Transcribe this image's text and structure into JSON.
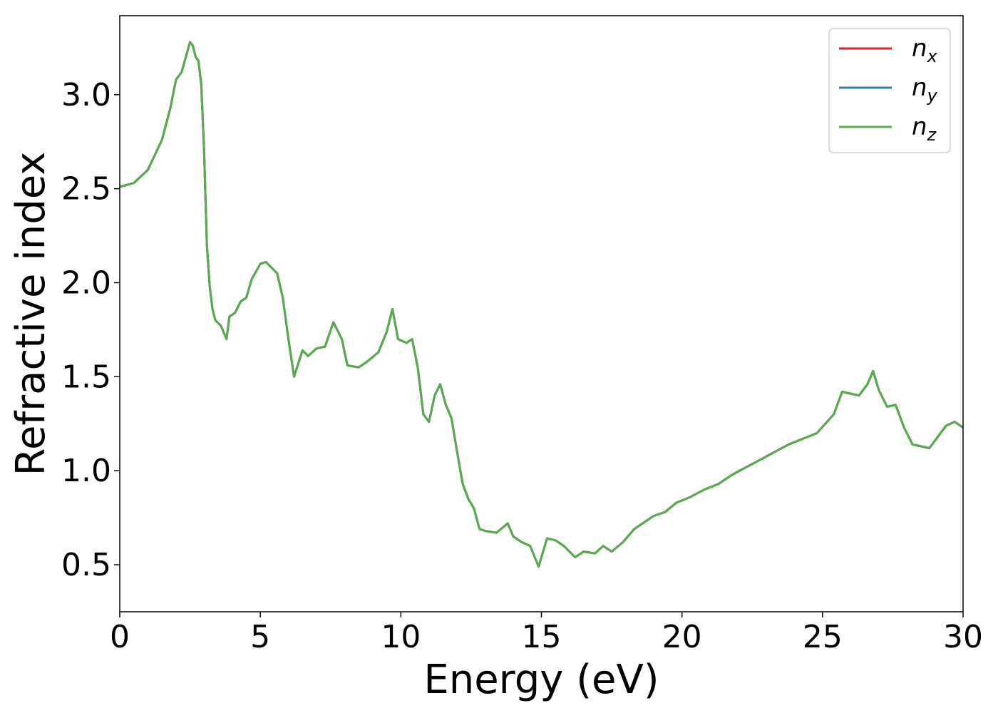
{
  "chart_data": {
    "type": "line",
    "title": "",
    "xlabel": "Energy (eV)",
    "ylabel": "Refractive index",
    "xlim": [
      0,
      30
    ],
    "ylim": [
      0.25,
      3.42
    ],
    "xticks": [
      0,
      5,
      10,
      15,
      20,
      25,
      30
    ],
    "xtick_labels": [
      "0",
      "5",
      "10",
      "15",
      "20",
      "25",
      "30"
    ],
    "yticks": [
      0.5,
      1.0,
      1.5,
      2.0,
      2.5,
      3.0
    ],
    "ytick_labels": [
      "0.5",
      "1.0",
      "1.5",
      "2.0",
      "2.5",
      "3.0"
    ],
    "grid": false,
    "legend_position": "top-right",
    "legend": [
      {
        "base": "n",
        "sub": "x",
        "color": "#d62728"
      },
      {
        "base": "n",
        "sub": "y",
        "color": "#3a7ca8"
      },
      {
        "base": "n",
        "sub": "z",
        "color": "#5aaa50"
      }
    ],
    "x": [
      0,
      0.5,
      1.0,
      1.5,
      1.8,
      2.0,
      2.2,
      2.5,
      2.6,
      2.7,
      2.8,
      2.9,
      3.0,
      3.1,
      3.2,
      3.3,
      3.4,
      3.6,
      3.8,
      3.9,
      4.1,
      4.3,
      4.5,
      4.7,
      5.0,
      5.2,
      5.4,
      5.6,
      5.8,
      6.0,
      6.2,
      6.5,
      6.7,
      7.0,
      7.3,
      7.6,
      7.9,
      8.1,
      8.5,
      8.8,
      9.2,
      9.5,
      9.7,
      9.9,
      10.2,
      10.4,
      10.6,
      10.8,
      11.0,
      11.2,
      11.4,
      11.6,
      11.8,
      12.0,
      12.2,
      12.4,
      12.6,
      12.8,
      13.0,
      13.4,
      13.8,
      14.0,
      14.3,
      14.6,
      14.9,
      15.2,
      15.5,
      15.8,
      16.2,
      16.5,
      16.9,
      17.2,
      17.5,
      17.9,
      18.3,
      18.7,
      19.0,
      19.4,
      19.8,
      20.3,
      20.8,
      21.3,
      21.8,
      22.3,
      22.8,
      23.3,
      23.8,
      24.3,
      24.8,
      25.1,
      25.4,
      25.7,
      26.0,
      26.3,
      26.6,
      26.8,
      27.0,
      27.3,
      27.6,
      27.9,
      28.2,
      28.5,
      28.8,
      29.1,
      29.4,
      29.7,
      30.0
    ],
    "series": [
      {
        "color": "#d62728",
        "values": [
          2.51,
          2.53,
          2.6,
          2.76,
          2.93,
          3.08,
          3.12,
          3.28,
          3.26,
          3.2,
          3.18,
          3.05,
          2.7,
          2.2,
          1.98,
          1.86,
          1.8,
          1.77,
          1.7,
          1.82,
          1.84,
          1.9,
          1.92,
          2.02,
          2.1,
          2.11,
          2.08,
          2.05,
          1.92,
          1.7,
          1.5,
          1.64,
          1.61,
          1.65,
          1.66,
          1.79,
          1.7,
          1.56,
          1.55,
          1.58,
          1.63,
          1.74,
          1.86,
          1.7,
          1.68,
          1.7,
          1.55,
          1.3,
          1.26,
          1.4,
          1.46,
          1.35,
          1.28,
          1.1,
          0.93,
          0.85,
          0.8,
          0.69,
          0.68,
          0.67,
          0.72,
          0.65,
          0.62,
          0.6,
          0.49,
          0.64,
          0.63,
          0.6,
          0.54,
          0.57,
          0.56,
          0.6,
          0.57,
          0.62,
          0.69,
          0.73,
          0.76,
          0.78,
          0.83,
          0.86,
          0.9,
          0.93,
          0.98,
          1.02,
          1.06,
          1.1,
          1.14,
          1.17,
          1.2,
          1.25,
          1.3,
          1.42,
          1.41,
          1.4,
          1.46,
          1.53,
          1.43,
          1.34,
          1.35,
          1.23,
          1.14,
          1.13,
          1.12,
          1.18,
          1.24,
          1.26,
          1.23
        ]
      },
      {
        "color": "#3a7ca8",
        "values": [
          2.51,
          2.53,
          2.6,
          2.76,
          2.93,
          3.08,
          3.12,
          3.28,
          3.26,
          3.2,
          3.18,
          3.05,
          2.7,
          2.2,
          1.98,
          1.86,
          1.8,
          1.77,
          1.7,
          1.82,
          1.84,
          1.9,
          1.92,
          2.02,
          2.1,
          2.11,
          2.08,
          2.05,
          1.92,
          1.7,
          1.5,
          1.64,
          1.61,
          1.65,
          1.66,
          1.79,
          1.7,
          1.56,
          1.55,
          1.58,
          1.63,
          1.74,
          1.86,
          1.7,
          1.68,
          1.7,
          1.55,
          1.3,
          1.26,
          1.4,
          1.46,
          1.35,
          1.28,
          1.1,
          0.93,
          0.85,
          0.8,
          0.69,
          0.68,
          0.67,
          0.72,
          0.65,
          0.62,
          0.6,
          0.49,
          0.64,
          0.63,
          0.6,
          0.54,
          0.57,
          0.56,
          0.6,
          0.57,
          0.62,
          0.69,
          0.73,
          0.76,
          0.78,
          0.83,
          0.86,
          0.9,
          0.93,
          0.98,
          1.02,
          1.06,
          1.1,
          1.14,
          1.17,
          1.2,
          1.25,
          1.3,
          1.42,
          1.41,
          1.4,
          1.46,
          1.53,
          1.43,
          1.34,
          1.35,
          1.23,
          1.14,
          1.13,
          1.12,
          1.18,
          1.24,
          1.26,
          1.23
        ]
      },
      {
        "color": "#5aaa50",
        "values": [
          2.51,
          2.53,
          2.6,
          2.76,
          2.93,
          3.08,
          3.12,
          3.28,
          3.26,
          3.2,
          3.18,
          3.05,
          2.7,
          2.2,
          1.98,
          1.86,
          1.8,
          1.77,
          1.7,
          1.82,
          1.84,
          1.9,
          1.92,
          2.02,
          2.1,
          2.11,
          2.08,
          2.05,
          1.92,
          1.7,
          1.5,
          1.64,
          1.61,
          1.65,
          1.66,
          1.79,
          1.7,
          1.56,
          1.55,
          1.58,
          1.63,
          1.74,
          1.86,
          1.7,
          1.68,
          1.7,
          1.55,
          1.3,
          1.26,
          1.4,
          1.46,
          1.35,
          1.28,
          1.1,
          0.93,
          0.85,
          0.8,
          0.69,
          0.68,
          0.67,
          0.72,
          0.65,
          0.62,
          0.6,
          0.49,
          0.64,
          0.63,
          0.6,
          0.54,
          0.57,
          0.56,
          0.6,
          0.57,
          0.62,
          0.69,
          0.73,
          0.76,
          0.78,
          0.83,
          0.86,
          0.9,
          0.93,
          0.98,
          1.02,
          1.06,
          1.1,
          1.14,
          1.17,
          1.2,
          1.25,
          1.3,
          1.42,
          1.41,
          1.4,
          1.46,
          1.53,
          1.43,
          1.34,
          1.35,
          1.23,
          1.14,
          1.13,
          1.12,
          1.18,
          1.24,
          1.26,
          1.23
        ]
      }
    ]
  }
}
